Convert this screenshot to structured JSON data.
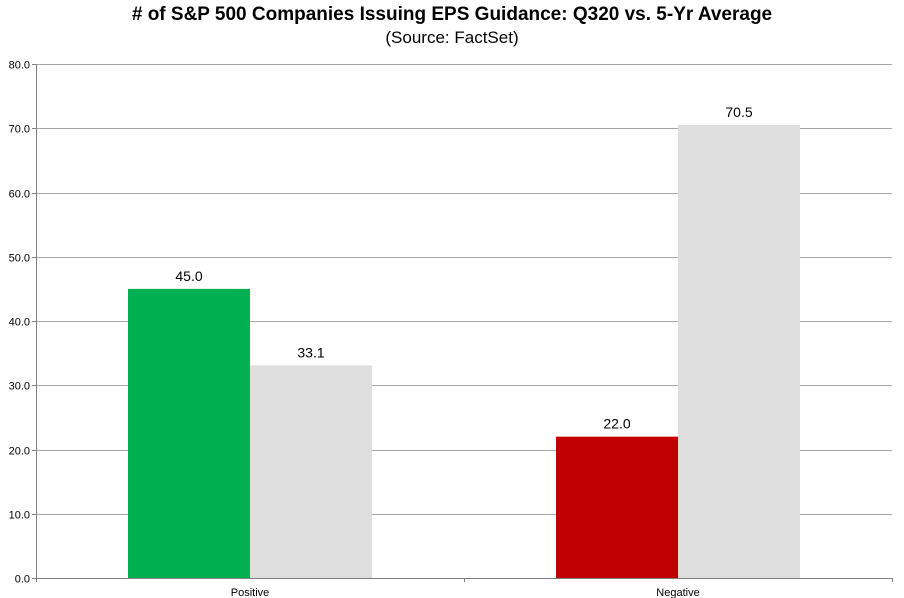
{
  "chart_data": {
    "type": "bar",
    "title": "# of S&P 500 Companies Issuing EPS Guidance: Q320 vs. 5-Yr Average",
    "subtitle": "(Source: FactSet)",
    "categories": [
      "Positive",
      "Negative"
    ],
    "series": [
      {
        "values": [
          45.0,
          22.0
        ],
        "value_labels": [
          "45.0",
          "22.0"
        ],
        "colors": [
          "#00b050",
          "#c00000"
        ]
      },
      {
        "values": [
          33.1,
          70.5
        ],
        "value_labels": [
          "33.1",
          "70.5"
        ],
        "colors": [
          "#dedede",
          "#dedede"
        ]
      }
    ],
    "ylim": [
      0,
      80
    ],
    "yticks": [
      0,
      10,
      20,
      30,
      40,
      50,
      60,
      70,
      80
    ],
    "ytick_labels": [
      "0.0",
      "10.0",
      "20.0",
      "30.0",
      "40.0",
      "50.0",
      "60.0",
      "70.0",
      "80.0"
    ],
    "xlabel": "",
    "ylabel": "",
    "grid": true,
    "legend": false
  }
}
